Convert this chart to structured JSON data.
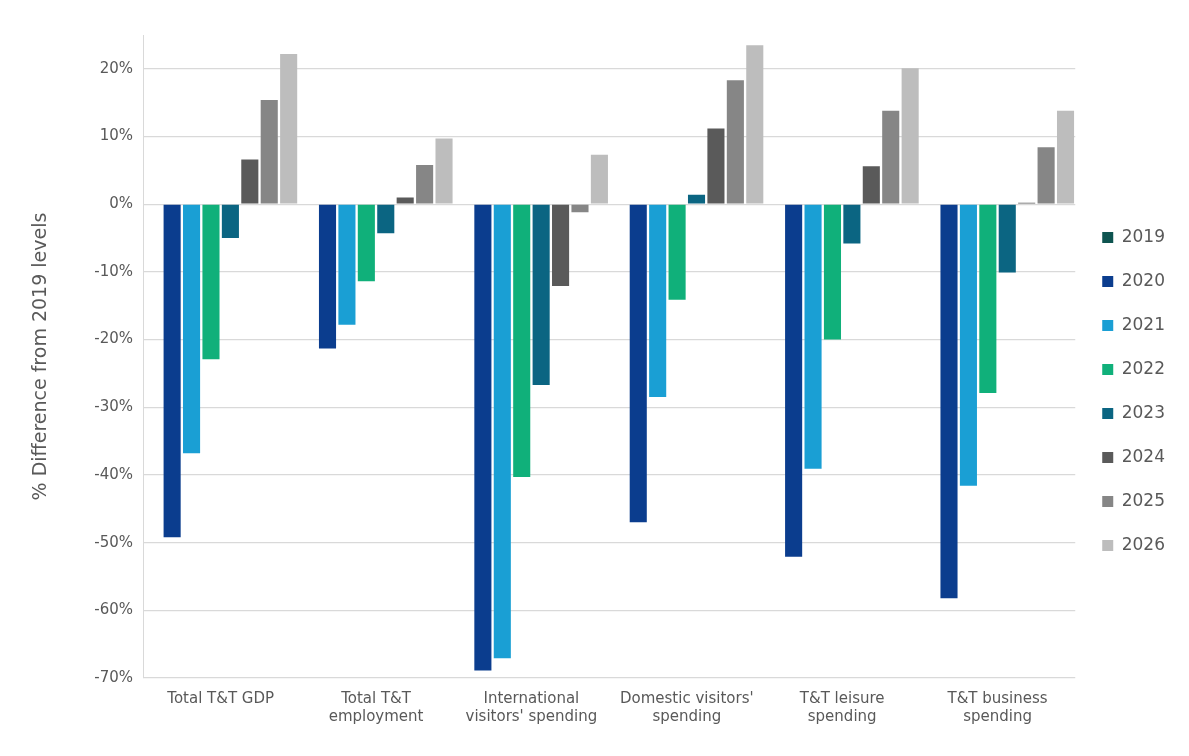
{
  "chart_data": {
    "type": "bar",
    "categories": [
      "Total T&T GDP",
      "Total T&T employment",
      "International visitors' spending",
      "Domestic visitors' spending",
      "T&T leisure spending",
      "T&T business spending"
    ],
    "series": [
      {
        "name": "2019",
        "color": "#0e5450",
        "values": [
          0,
          0,
          0,
          0,
          0,
          0
        ]
      },
      {
        "name": "2020",
        "color": "#0b3d8e",
        "values": [
          -49.2,
          -21.3,
          -68.9,
          -47.0,
          -52.1,
          -58.2
        ]
      },
      {
        "name": "2021",
        "color": "#1a9fd4",
        "values": [
          -36.8,
          -17.8,
          -67.1,
          -28.5,
          -39.1,
          -41.6
        ]
      },
      {
        "name": "2022",
        "color": "#10b07a",
        "values": [
          -22.9,
          -11.4,
          -40.3,
          -14.1,
          -20.0,
          -27.9
        ]
      },
      {
        "name": "2023",
        "color": "#0b6582",
        "values": [
          -5.0,
          -4.3,
          -26.7,
          1.4,
          -5.8,
          -10.1
        ]
      },
      {
        "name": "2024",
        "color": "#5a5a5a",
        "values": [
          6.6,
          1.0,
          -12.1,
          11.2,
          5.6,
          0.2
        ]
      },
      {
        "name": "2025",
        "color": "#868686",
        "values": [
          15.4,
          5.8,
          -1.2,
          18.3,
          13.8,
          8.4
        ]
      },
      {
        "name": "2026",
        "color": "#bdbdbd",
        "values": [
          22.2,
          9.7,
          7.3,
          23.5,
          20.1,
          13.8
        ]
      }
    ],
    "ylabel": "% Difference from 2019 levels",
    "ylim": [
      -70,
      25
    ],
    "yticks": [
      {
        "value": -70,
        "label": "-70%"
      },
      {
        "value": -60,
        "label": "-60%"
      },
      {
        "value": -50,
        "label": "-50%"
      },
      {
        "value": -40,
        "label": "-40%"
      },
      {
        "value": -30,
        "label": "-30%"
      },
      {
        "value": -20,
        "label": "-20%"
      },
      {
        "value": -10,
        "label": "-10%"
      },
      {
        "value": 0,
        "label": "0%"
      },
      {
        "value": 10,
        "label": "10%"
      },
      {
        "value": 20,
        "label": "20%"
      }
    ],
    "grid": "y",
    "legend": "right"
  }
}
